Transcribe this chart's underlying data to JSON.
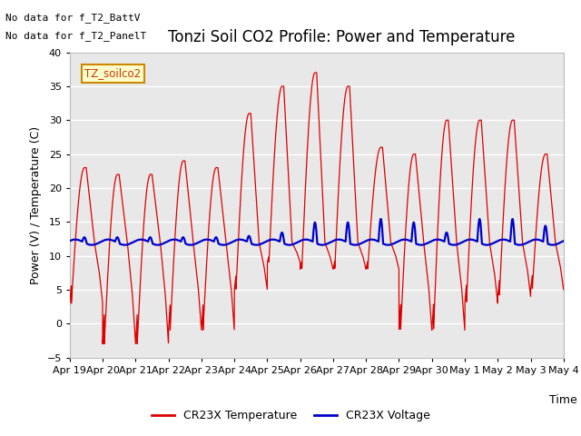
{
  "title": "Tonzi Soil CO2 Profile: Power and Temperature",
  "xlabel": "Time",
  "ylabel": "Power (V) / Temperature (C)",
  "ylim": [
    -5,
    40
  ],
  "xlim": [
    0,
    15
  ],
  "no_data_text": [
    "No data for f_T2_BattV",
    "No data for f_T2_PanelT"
  ],
  "legend_label_text": "TZ_soilco2",
  "legend_label_color": "#cc8800",
  "legend_label_bg": "#ffffcc",
  "xtick_labels": [
    "Apr 19",
    "Apr 20",
    "Apr 21",
    "Apr 22",
    "Apr 23",
    "Apr 24",
    "Apr 25",
    "Apr 26",
    "Apr 27",
    "Apr 28",
    "Apr 29",
    "Apr 30",
    "May 1",
    "May 2",
    "May 3",
    "May 4"
  ],
  "temp_color": "#dd0000",
  "volt_color": "#0000cc",
  "fig_bg_color": "#ffffff",
  "plot_bg_color": "#e8e8e8",
  "grid_color": "#ffffff",
  "temp_label": "CR23X Temperature",
  "volt_label": "CR23X Voltage",
  "title_fontsize": 12,
  "axis_fontsize": 9,
  "tick_fontsize": 8,
  "temp_peaks": [
    23,
    22,
    22,
    24,
    23,
    31,
    35,
    37,
    35,
    26,
    25,
    30,
    30,
    30,
    25
  ],
  "temp_troughs": [
    3,
    -3,
    -3,
    -1,
    -1,
    5,
    9,
    8,
    8,
    8,
    -1,
    -1,
    3,
    4,
    5
  ],
  "volt_base": 12.0,
  "volt_spikes": [
    0.8,
    0.8,
    0.8,
    0.8,
    0.8,
    1.0,
    1.5,
    3.0,
    3.0,
    3.5,
    3.0,
    1.5,
    3.5,
    3.5,
    2.5
  ]
}
